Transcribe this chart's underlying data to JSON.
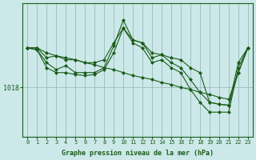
{
  "x": [
    0,
    1,
    2,
    3,
    4,
    5,
    6,
    7,
    8,
    9,
    10,
    11,
    12,
    13,
    14,
    15,
    16,
    17,
    18,
    19,
    20,
    21,
    22,
    23
  ],
  "line_main": [
    1022.0,
    1022.0,
    1021.0,
    1021.2,
    1020.8,
    1020.8,
    1020.5,
    1020.5,
    1020.8,
    1022.5,
    1024.0,
    1022.8,
    1022.5,
    1021.5,
    1021.3,
    1021.0,
    1020.8,
    1020.0,
    1019.5,
    1016.5,
    1016.3,
    1016.2,
    1019.5,
    1022.0
  ],
  "line_jagged": [
    1022.0,
    1021.8,
    1020.5,
    1019.8,
    1020.2,
    1019.5,
    1019.5,
    1019.5,
    1020.0,
    1022.2,
    1024.8,
    1022.8,
    1022.5,
    1021.0,
    1021.3,
    1020.5,
    1020.0,
    1018.8,
    1017.5,
    1016.5,
    1016.3,
    1016.2,
    1020.5,
    1022.0
  ],
  "line_low": [
    1022.0,
    1021.8,
    1020.0,
    1019.5,
    1019.5,
    1019.3,
    1019.2,
    1019.3,
    1019.8,
    1021.5,
    1024.0,
    1022.5,
    1022.0,
    1020.5,
    1020.8,
    1020.0,
    1019.5,
    1017.8,
    1016.5,
    1015.5,
    1015.5,
    1015.5,
    1020.0,
    1022.0
  ],
  "line_straight": [
    1022.0,
    1022.0,
    1021.5,
    1021.2,
    1021.0,
    1020.8,
    1020.5,
    1020.3,
    1020.0,
    1019.8,
    1019.5,
    1019.2,
    1019.0,
    1018.8,
    1018.5,
    1018.3,
    1018.0,
    1017.8,
    1017.5,
    1017.3,
    1017.0,
    1016.8,
    1019.5,
    1022.0
  ],
  "bg_color": "#cce8e8",
  "plot_bg": "#cce8e8",
  "line_color": "#1a5c1a",
  "grid_color": "#99bbbb",
  "ylabel_text": "1018",
  "ylabel_value": 1018,
  "xlabel": "Graphe pression niveau de la mer (hPa)",
  "ylim_min": 1013.0,
  "ylim_max": 1026.5
}
